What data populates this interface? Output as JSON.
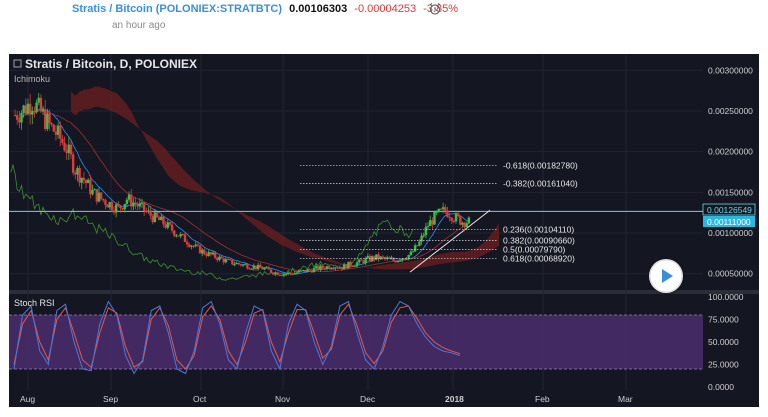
{
  "header": {
    "name": "Stratis / Bitcoin",
    "ticker": "(POLONIEX:STRATBTC)",
    "price": "0.00106303",
    "change": "-0.00004253",
    "change_pct": "-3.85%",
    "time": "an hour ago",
    "alert_icon": "alarm-clock-icon"
  },
  "chart": {
    "title": "Stratis / Bitcoin, D, POLONIEX",
    "indicator": "Ichimoku",
    "lower_indicator": "Stoch RSI",
    "price_labels": [
      "0.00300000",
      "0.00250000",
      "0.00200000",
      "0.00150000",
      "0.00100000",
      "0.00050000"
    ],
    "price_badge_1": "0.00126549",
    "price_badge_2": "0.00111000",
    "rsi_labels": [
      "100.0000",
      "75.0000",
      "50.0000",
      "25.0000",
      "0.0000"
    ],
    "time_labels": [
      "Aug",
      "Sep",
      "Oct",
      "Nov",
      "Dec",
      "2018",
      "Feb",
      "Mar"
    ],
    "fib_levels": [
      {
        "label": "-0.618(0.00182780)",
        "value": 0.0018278
      },
      {
        "label": "-0.382(0.00161040)",
        "value": 0.0016104
      },
      {
        "label": "0.236(0.00104110)",
        "value": 0.0010411
      },
      {
        "label": "0.382(0.00090660)",
        "value": 0.0009066
      },
      {
        "label": "0.5(0.00079790)",
        "value": 0.0007979
      },
      {
        "label": "0.618(0.00068920)",
        "value": 0.0006892
      }
    ],
    "colors": {
      "bg": "#141722",
      "up": "#3dbb4c",
      "down": "#e03b3b",
      "cloud": "#7a1f1f",
      "cyan": "#6fd3e6",
      "rsi_band": "#4b2d6d",
      "k": "#4a78d8",
      "d": "#e0594e",
      "grid": "#1f2433",
      "text": "#cfcfcf"
    }
  },
  "chart_data": {
    "type": "candlestick",
    "title": "Stratis / Bitcoin, D, POLONIEX",
    "y_ticks": [
      0.003,
      0.0025,
      0.002,
      0.0015,
      0.001,
      0.0005
    ],
    "ylim": [
      0.0003,
      0.0032
    ],
    "x_ticks": [
      "Aug",
      "Sep",
      "Oct",
      "Nov",
      "Dec",
      "2018",
      "Feb",
      "Mar"
    ],
    "close_path": [
      0.00245,
      0.00252,
      0.00262,
      0.00248,
      0.00232,
      0.0022,
      0.00204,
      0.00178,
      0.00166,
      0.0015,
      0.00142,
      0.00136,
      0.0013,
      0.00142,
      0.00136,
      0.00128,
      0.0012,
      0.00114,
      0.00106,
      0.00098,
      0.0009,
      0.00082,
      0.00076,
      0.00072,
      0.00068,
      0.00064,
      0.00062,
      0.0006,
      0.00058,
      0.00056,
      0.00052,
      0.0005,
      0.0005,
      0.00052,
      0.00054,
      0.00056,
      0.00058,
      0.0006,
      0.00058,
      0.00062,
      0.00064,
      0.00068,
      0.0007,
      0.00068,
      0.00066,
      0.0007,
      0.00074,
      0.00088,
      0.0011,
      0.00122,
      0.00128,
      0.0012,
      0.00114
    ],
    "stoch_k": [
      20,
      80,
      90,
      40,
      25,
      85,
      92,
      50,
      20,
      18,
      70,
      95,
      80,
      35,
      15,
      30,
      85,
      90,
      60,
      20,
      15,
      40,
      88,
      95,
      70,
      30,
      20,
      60,
      90,
      85,
      40,
      20,
      70,
      92,
      85,
      50,
      25,
      45,
      90,
      95,
      60,
      30,
      20,
      45,
      80,
      95,
      90,
      70,
      55,
      45,
      40,
      38,
      35
    ],
    "stoch_d": [
      25,
      70,
      85,
      50,
      30,
      75,
      88,
      60,
      30,
      22,
      60,
      88,
      82,
      45,
      22,
      28,
      75,
      88,
      68,
      30,
      20,
      35,
      78,
      90,
      75,
      40,
      25,
      50,
      82,
      86,
      50,
      28,
      60,
      86,
      86,
      60,
      32,
      42,
      80,
      92,
      68,
      38,
      26,
      40,
      72,
      88,
      90,
      76,
      60,
      50,
      44,
      40,
      37
    ],
    "rsi_ylim": [
      0,
      100
    ]
  }
}
